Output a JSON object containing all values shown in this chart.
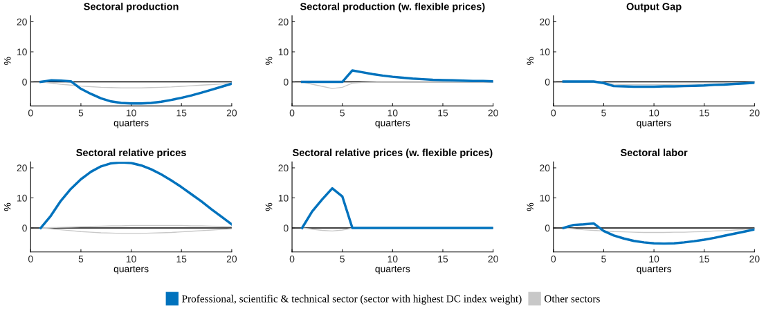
{
  "chart_data": [
    {
      "type": "line",
      "title": "Sectoral production",
      "xlabel": "quarters",
      "ylabel": "%",
      "x": [
        1,
        2,
        3,
        4,
        5,
        6,
        7,
        8,
        9,
        10,
        11,
        12,
        13,
        14,
        15,
        16,
        17,
        18,
        19,
        20
      ],
      "xlim": [
        0,
        20
      ],
      "xticks": [
        0,
        5,
        10,
        15,
        20
      ],
      "ylim": [
        -8,
        22
      ],
      "yticks": [
        0,
        10,
        20
      ],
      "legend": "bottom",
      "ref_lines": [
        {
          "axis": "y",
          "value": 0,
          "color": "#000000"
        }
      ],
      "series": [
        {
          "name": "Other sectors",
          "color": "#c8c8c8",
          "values": [
            0,
            -0.4,
            -0.8,
            -1.1,
            -1.4,
            -1.6,
            -1.8,
            -1.9,
            -2,
            -2,
            -2,
            -1.9,
            -1.8,
            -1.7,
            -1.5,
            -1.3,
            -1.1,
            -0.9,
            -0.7,
            -0.5
          ]
        },
        {
          "name": "Professional, scientific & technical sector (sector with highest DC index weight)",
          "color": "#0072bd",
          "values": [
            0,
            0.5,
            0.4,
            0.2,
            -2.3,
            -4,
            -5.5,
            -6.5,
            -7,
            -7.2,
            -7.2,
            -7,
            -6.6,
            -6,
            -5.3,
            -4.5,
            -3.6,
            -2.6,
            -1.6,
            -0.6
          ]
        }
      ]
    },
    {
      "type": "line",
      "title": "Sectoral production (w. flexible prices)",
      "xlabel": "quarters",
      "ylabel": "%",
      "x": [
        1,
        2,
        3,
        4,
        5,
        6,
        7,
        8,
        9,
        10,
        11,
        12,
        13,
        14,
        15,
        16,
        17,
        18,
        19,
        20
      ],
      "xlim": [
        0,
        20
      ],
      "xticks": [
        0,
        5,
        10,
        15,
        20
      ],
      "ylim": [
        -8,
        22
      ],
      "yticks": [
        0,
        10,
        20
      ],
      "ref_lines": [
        {
          "axis": "y",
          "value": 0,
          "color": "#000000"
        }
      ],
      "series": [
        {
          "color": "#c8c8c8",
          "values": [
            0,
            -0.8,
            -1.5,
            -2.2,
            -1.8,
            -0.4,
            -0.2,
            -0.1,
            0,
            0,
            0,
            0,
            0,
            0,
            0,
            0,
            0,
            0,
            0,
            0
          ]
        },
        {
          "color": "#0072bd",
          "values": [
            0,
            0,
            0,
            0,
            0,
            3.8,
            3.2,
            2.6,
            2.1,
            1.7,
            1.4,
            1.1,
            0.9,
            0.7,
            0.6,
            0.5,
            0.4,
            0.3,
            0.3,
            0.2
          ]
        }
      ]
    },
    {
      "type": "line",
      "title": "Output Gap",
      "xlabel": "quarters",
      "ylabel": "%",
      "x": [
        1,
        2,
        3,
        4,
        5,
        6,
        7,
        8,
        9,
        10,
        11,
        12,
        13,
        14,
        15,
        16,
        17,
        18,
        19,
        20
      ],
      "xlim": [
        0,
        20
      ],
      "xticks": [
        0,
        5,
        10,
        15,
        20
      ],
      "ylim": [
        -8,
        22
      ],
      "yticks": [
        0,
        10,
        20
      ],
      "ref_lines": [
        {
          "axis": "y",
          "value": 0,
          "color": "#000000"
        }
      ],
      "series": [
        {
          "color": "#c8c8c8",
          "values": [
            null,
            null,
            null,
            -0.2,
            -0.4,
            -0.8,
            -0.9,
            -0.9,
            -0.9,
            -0.9,
            -0.9,
            -0.8,
            -0.8,
            -0.7,
            -0.7,
            -0.6,
            -0.5,
            -0.4,
            -0.3,
            -0.2
          ]
        },
        {
          "color": "#0072bd",
          "values": [
            0.1,
            0.1,
            0.1,
            0.1,
            -0.4,
            -1.4,
            -1.5,
            -1.6,
            -1.6,
            -1.6,
            -1.5,
            -1.5,
            -1.4,
            -1.3,
            -1.2,
            -1,
            -0.9,
            -0.7,
            -0.5,
            -0.3
          ]
        }
      ]
    },
    {
      "type": "line",
      "title": "Sectoral relative prices",
      "xlabel": "quarters",
      "ylabel": "%",
      "x": [
        1,
        2,
        3,
        4,
        5,
        6,
        7,
        8,
        9,
        10,
        11,
        12,
        13,
        14,
        15,
        16,
        17,
        18,
        19,
        20
      ],
      "xlim": [
        0,
        20
      ],
      "xticks": [
        0,
        5,
        10,
        15,
        20
      ],
      "ylim": [
        -8,
        22
      ],
      "yticks": [
        0,
        10,
        20
      ],
      "ref_lines": [
        {
          "axis": "y",
          "value": 0,
          "color": "#000000"
        }
      ],
      "series": [
        {
          "color": "#c8c8c8",
          "values": [
            0,
            -0.3,
            -0.6,
            -0.9,
            -1.2,
            -1.4,
            -1.6,
            -1.7,
            -1.8,
            -1.8,
            -1.8,
            -1.7,
            -1.6,
            -1.5,
            -1.3,
            -1.1,
            -0.9,
            -0.7,
            -0.5,
            -0.3
          ]
        },
        {
          "color": "#c8c8c8",
          "values": [
            0,
            0.1,
            0.2,
            0.3,
            0.4,
            0.5,
            0.6,
            0.7,
            0.7,
            0.8,
            0.8,
            0.8,
            0.8,
            0.8,
            0.8,
            0.7,
            0.7,
            0.6,
            0.5,
            0.4
          ]
        },
        {
          "color": "#0072bd",
          "values": [
            0,
            4,
            9,
            13,
            16.2,
            18.7,
            20.5,
            21.5,
            21.8,
            21.6,
            20.8,
            19.5,
            17.8,
            15.8,
            13.6,
            11.2,
            8.8,
            6.2,
            3.7,
            1.2
          ]
        }
      ]
    },
    {
      "type": "line",
      "title": "Sectoral relative prices (w. flexible prices)",
      "xlabel": "quarters",
      "ylabel": "%",
      "x": [
        1,
        2,
        3,
        4,
        5,
        6,
        7,
        8,
        9,
        10,
        11,
        12,
        13,
        14,
        15,
        16,
        17,
        18,
        19,
        20
      ],
      "xlim": [
        0,
        20
      ],
      "xticks": [
        0,
        5,
        10,
        15,
        20
      ],
      "ylim": [
        -8,
        22
      ],
      "yticks": [
        0,
        10,
        20
      ],
      "ref_lines": [
        {
          "axis": "y",
          "value": 0,
          "color": "#000000"
        }
      ],
      "series": [
        {
          "color": "#c8c8c8",
          "values": [
            0,
            -0.4,
            -0.8,
            -1,
            -0.7,
            -0.1,
            null,
            null,
            null,
            null,
            null,
            null,
            null,
            null,
            null,
            null,
            null,
            null,
            null,
            null
          ]
        },
        {
          "color": "#0072bd",
          "values": [
            0,
            5.5,
            9.5,
            13.2,
            10.5,
            0,
            0,
            0,
            0,
            0,
            0,
            0,
            0,
            0,
            0,
            0,
            0,
            0,
            0,
            0
          ]
        }
      ]
    },
    {
      "type": "line",
      "title": "Sectoral labor",
      "xlabel": "quarters",
      "ylabel": "%",
      "x": [
        1,
        2,
        3,
        4,
        5,
        6,
        7,
        8,
        9,
        10,
        11,
        12,
        13,
        14,
        15,
        16,
        17,
        18,
        19,
        20
      ],
      "xlim": [
        0,
        20
      ],
      "xticks": [
        0,
        5,
        10,
        15,
        20
      ],
      "ylim": [
        -8,
        22
      ],
      "yticks": [
        0,
        10,
        20
      ],
      "ref_lines": [
        {
          "axis": "y",
          "value": 0,
          "color": "#000000"
        }
      ],
      "series": [
        {
          "color": "#c8c8c8",
          "values": [
            0,
            -0.3,
            -0.6,
            -0.8,
            -1,
            -1.2,
            -1.3,
            -1.4,
            -1.5,
            -1.5,
            -1.5,
            -1.4,
            -1.4,
            -1.3,
            -1.2,
            -1,
            -0.9,
            -0.7,
            -0.5,
            -0.3
          ]
        },
        {
          "color": "#0072bd",
          "values": [
            0,
            1,
            1.2,
            1.5,
            -1,
            -2.5,
            -3.5,
            -4.3,
            -4.8,
            -5.1,
            -5.2,
            -5.1,
            -4.8,
            -4.4,
            -3.9,
            -3.3,
            -2.6,
            -1.9,
            -1.2,
            -0.5
          ]
        }
      ]
    }
  ]
}
